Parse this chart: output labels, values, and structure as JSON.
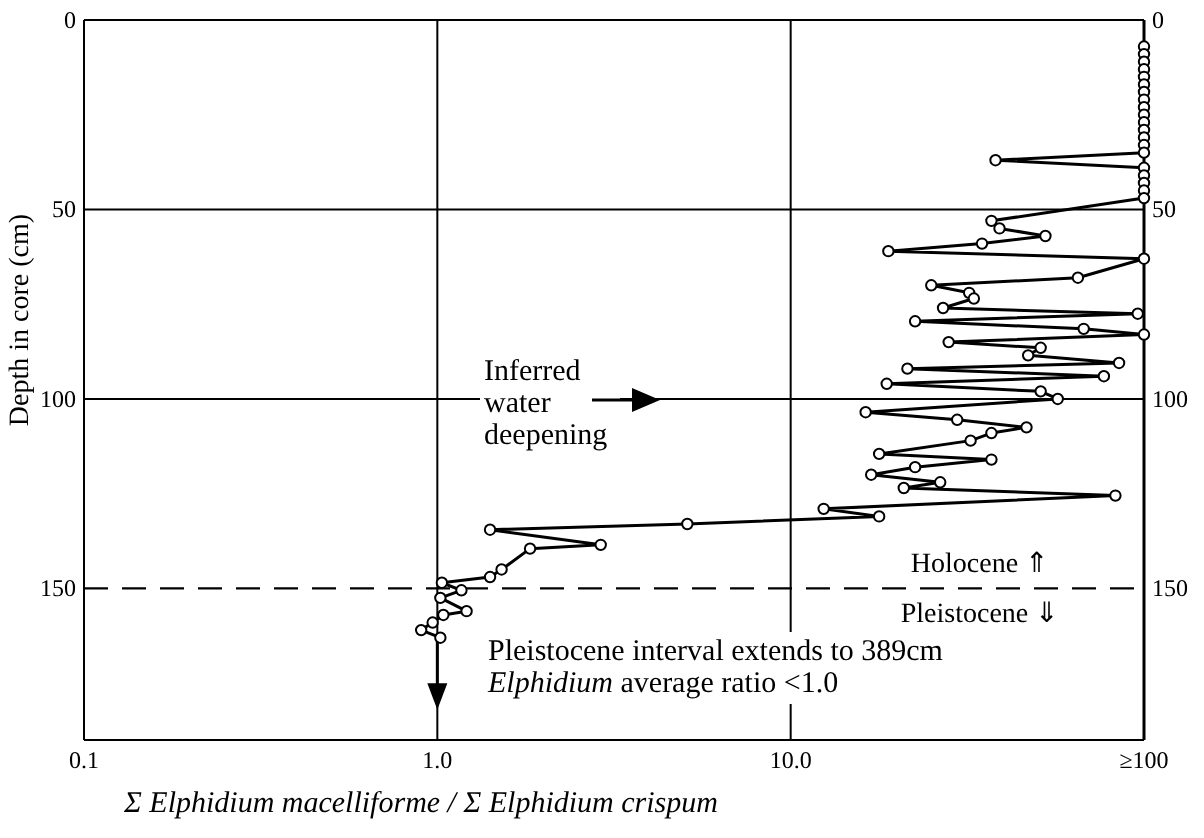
{
  "chart_data": {
    "type": "line",
    "ylabel": "Depth in core (cm)",
    "xlabel": "Σ Elphidium macelliforme / Σ Elphidium crispum",
    "log": "x",
    "xlim": [
      0.1,
      100
    ],
    "xticks": [
      0.1,
      {
        "value": 1,
        "label": "1.0"
      },
      {
        "value": 10,
        "label": "10.0"
      },
      {
        "value": 100,
        "label": "≥100"
      }
    ],
    "ylim": [
      190,
      0
    ],
    "yticks": [
      0,
      50,
      100,
      150
    ],
    "y2lim": [
      190,
      0
    ],
    "y2ticks": [
      0,
      50,
      100,
      150
    ],
    "grid": true,
    "marker": "circle",
    "line_style": "solid",
    "series": [
      {
        "color": "#000000",
        "x": [
          100,
          100,
          100,
          100,
          100,
          100,
          100,
          100,
          100,
          100,
          100,
          100,
          100,
          100,
          100,
          38,
          100,
          100,
          100,
          100,
          100,
          37,
          39,
          52.6,
          34.8,
          18.9,
          100,
          65,
          25,
          32,
          33,
          27,
          96,
          22.5,
          67.5,
          100,
          28,
          51,
          47,
          85,
          21.4,
          77,
          18.7,
          51,
          57,
          16.3,
          29.6,
          46.5,
          37,
          32.3,
          17.8,
          37,
          22.5,
          16.9,
          26.5,
          20.9,
          83,
          12.4,
          17.8,
          5.1,
          1.41,
          2.9,
          1.83,
          1.52,
          1.41,
          1.03,
          1.17,
          1.02,
          1.21,
          1.04,
          0.97,
          0.9,
          1.02
        ],
        "values": [
          7,
          9,
          11,
          13,
          15,
          17,
          19,
          21,
          23,
          25,
          27,
          29,
          31,
          33,
          35,
          37,
          39,
          41,
          43,
          45,
          47,
          53,
          55,
          57,
          59,
          61,
          63,
          68,
          70,
          72,
          73.5,
          76,
          77.5,
          79.5,
          81.5,
          83,
          85,
          86.5,
          88.5,
          90.5,
          92,
          94,
          96,
          98,
          100,
          103.5,
          105.5,
          107.5,
          109,
          111,
          114.5,
          116,
          118,
          120,
          122,
          123.5,
          125.5,
          129,
          131,
          133,
          134.5,
          138.5,
          139.5,
          145,
          147,
          148.5,
          150.5,
          152.5,
          156,
          157,
          159,
          161,
          163
        ]
      }
    ],
    "ref_lines": [
      {
        "axis": "y",
        "value": 150,
        "line_style": "dashed",
        "color": "#000000"
      }
    ],
    "annotations": [
      "Inferred water deepening",
      "Holocene ⇑",
      "Pleistocene ⇓",
      "Pleistocene interval extends to 389cm",
      "Elphidium average ratio <1.0"
    ]
  }
}
